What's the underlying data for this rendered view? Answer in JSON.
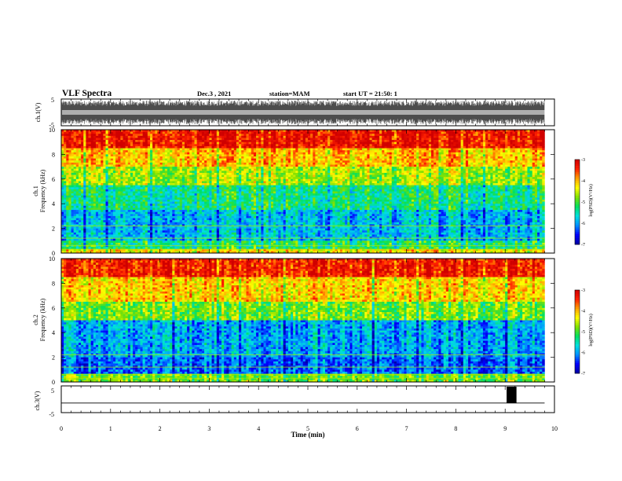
{
  "header": {
    "title": "VLF Spectra",
    "date": "Dec.3 , 2021",
    "station": "station=MAM",
    "start": "start UT = 21:50: 1"
  },
  "chart_data": [
    {
      "type": "line",
      "name": "ch1-waveform",
      "ylabel": "ch.1(V)",
      "ylim": [
        -5,
        5
      ],
      "yticks": [
        "5",
        "-5"
      ],
      "xlim": [
        0,
        10
      ],
      "note": "dense oscillating waveform spanning approximately -5 to 5 V from 0 to 9.8 min"
    },
    {
      "type": "heatmap",
      "name": "ch1-spectrogram",
      "ylabel": "ch.1\nFrequency (kHz)",
      "ylim": [
        0,
        10
      ],
      "yticks": [
        "0",
        "2",
        "4",
        "6",
        "8",
        "10"
      ],
      "xlim": [
        0,
        10
      ],
      "data_xmax": 9.8,
      "bands": [
        {
          "from": 8.5,
          "to": 10,
          "level": -3.2
        },
        {
          "from": 7.0,
          "to": 8.5,
          "level": -4.0
        },
        {
          "from": 5.5,
          "to": 7.0,
          "level": -4.6
        },
        {
          "from": 3.5,
          "to": 5.5,
          "level": -5.3
        },
        {
          "from": 1.0,
          "to": 3.5,
          "level": -5.8
        },
        {
          "from": 0.4,
          "to": 1.0,
          "level": -5.2
        },
        {
          "from": 0.0,
          "to": 0.4,
          "level": -4.2
        }
      ],
      "colorbar": {
        "label": "log(PSD)(V²/Hz)",
        "range": [
          -7,
          -3
        ],
        "ticks": [
          "-3",
          "-4",
          "-5",
          "-6",
          "-7"
        ]
      }
    },
    {
      "type": "heatmap",
      "name": "ch2-spectrogram",
      "ylabel": "ch.2\nFrequency (kHz)",
      "ylim": [
        0,
        10
      ],
      "yticks": [
        "0",
        "2",
        "4",
        "6",
        "8",
        "10"
      ],
      "xlim": [
        0,
        10
      ],
      "data_xmax": 9.8,
      "bands": [
        {
          "from": 8.5,
          "to": 10,
          "level": -3.3
        },
        {
          "from": 6.5,
          "to": 8.5,
          "level": -4.1
        },
        {
          "from": 5.0,
          "to": 6.5,
          "level": -4.8
        },
        {
          "from": 2.0,
          "to": 5.0,
          "level": -5.9
        },
        {
          "from": 0.6,
          "to": 2.0,
          "level": -6.2
        },
        {
          "from": 0.0,
          "to": 0.6,
          "level": -4.8
        }
      ],
      "colorbar": {
        "label": "log(PSD)(V²/Hz)",
        "range": [
          -7,
          -3
        ],
        "ticks": [
          "-3",
          "-4",
          "-5",
          "-6",
          "-7"
        ]
      }
    },
    {
      "type": "line",
      "name": "ch3-signal",
      "ylabel": "ch.3(V)",
      "ylim": [
        -5,
        5
      ],
      "yticks": [
        "5",
        "-5"
      ],
      "xlim": [
        0,
        10
      ],
      "baseline": -1.5,
      "pulse": {
        "x_start": 9.03,
        "x_end": 9.23,
        "y_low": -1.5,
        "y_high": 5
      }
    }
  ],
  "xaxis": {
    "label": "Time (min)",
    "ticks": [
      "0",
      "1",
      "2",
      "3",
      "4",
      "5",
      "6",
      "7",
      "8",
      "9",
      "10"
    ]
  },
  "colors": {
    "scale": [
      "#0000a0",
      "#0000ff",
      "#0090ff",
      "#00e0e0",
      "#00e060",
      "#80e000",
      "#ffff00",
      "#ffa000",
      "#ff2000",
      "#d00000"
    ]
  }
}
